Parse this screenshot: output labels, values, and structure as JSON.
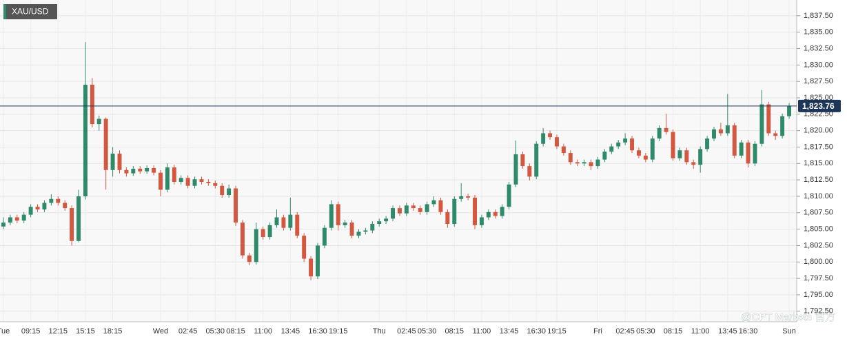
{
  "chart_data": {
    "type": "candlestick",
    "title": "XAU/USD",
    "watermark": "@CPT Markets 官方",
    "categories": [
      "Tue",
      null,
      null,
      null,
      "09:15",
      null,
      null,
      null,
      "12:15",
      null,
      null,
      null,
      "15:15",
      null,
      null,
      null,
      "18:15",
      null,
      null,
      null,
      null,
      null,
      null,
      "Wed",
      null,
      null,
      null,
      "02:45",
      null,
      null,
      null,
      "05:30",
      null,
      null,
      "08:15",
      null,
      null,
      null,
      "11:00",
      null,
      null,
      null,
      "13:45",
      null,
      null,
      null,
      "16:30",
      null,
      null,
      "19:15",
      null,
      null,
      null,
      null,
      null,
      "Thu",
      null,
      null,
      null,
      "02:45",
      null,
      null,
      "05:30",
      null,
      null,
      null,
      "08:15",
      null,
      null,
      null,
      "11:00",
      null,
      null,
      null,
      "13:45",
      null,
      null,
      null,
      "16:30",
      null,
      null,
      "19:15",
      null,
      null,
      null,
      null,
      null,
      "Fri",
      null,
      null,
      null,
      "02:45",
      null,
      null,
      "05:30",
      null,
      null,
      null,
      "08:15",
      null,
      null,
      null,
      "11:00",
      null,
      null,
      null,
      "13:45",
      null,
      null,
      "16:30",
      null,
      null,
      null,
      null,
      null,
      "Sun"
    ],
    "ohlc": [
      [
        1805.4,
        1806.8,
        1805.0,
        1806.0
      ],
      [
        1806.0,
        1807.2,
        1805.6,
        1806.8
      ],
      [
        1806.8,
        1807.2,
        1805.9,
        1806.3
      ],
      [
        1806.3,
        1807.6,
        1805.9,
        1807.2
      ],
      [
        1807.2,
        1808.8,
        1806.8,
        1808.4
      ],
      [
        1808.4,
        1808.8,
        1807.6,
        1808.0
      ],
      [
        1808.0,
        1809.4,
        1807.6,
        1809.0
      ],
      [
        1809.0,
        1810.3,
        1808.6,
        1809.6
      ],
      [
        1809.6,
        1810.0,
        1808.6,
        1809.0
      ],
      [
        1809.0,
        1809.4,
        1807.8,
        1808.2
      ],
      [
        1808.2,
        1808.6,
        1802.5,
        1803.2
      ],
      [
        1803.2,
        1811.0,
        1803.0,
        1810.0
      ],
      [
        1810.0,
        1833.5,
        1809.5,
        1827.0
      ],
      [
        1827.0,
        1828.0,
        1820.5,
        1821.0
      ],
      [
        1821.0,
        1822.3,
        1820.0,
        1821.8
      ],
      [
        1821.8,
        1822.0,
        1811.0,
        1814.0
      ],
      [
        1814.0,
        1817.5,
        1813.0,
        1816.5
      ],
      [
        1816.5,
        1817.0,
        1813.5,
        1814.0
      ],
      [
        1814.0,
        1814.4,
        1813.0,
        1813.5
      ],
      [
        1813.5,
        1814.6,
        1813.1,
        1814.2
      ],
      [
        1814.2,
        1814.6,
        1813.4,
        1813.8
      ],
      [
        1813.8,
        1814.7,
        1813.4,
        1814.3
      ],
      [
        1814.3,
        1814.7,
        1813.2,
        1813.6
      ],
      [
        1813.6,
        1814.0,
        1810.0,
        1811.0
      ],
      [
        1811.0,
        1815.0,
        1810.6,
        1814.4
      ],
      [
        1814.4,
        1814.8,
        1811.8,
        1812.2
      ],
      [
        1812.2,
        1813.2,
        1811.8,
        1812.8
      ],
      [
        1812.8,
        1813.2,
        1811.2,
        1811.6
      ],
      [
        1811.6,
        1813.0,
        1811.2,
        1812.6
      ],
      [
        1812.6,
        1813.0,
        1811.8,
        1812.2
      ],
      [
        1812.2,
        1812.6,
        1811.6,
        1812.0
      ],
      [
        1812.0,
        1812.4,
        1811.2,
        1811.6
      ],
      [
        1811.6,
        1812.0,
        1809.8,
        1810.2
      ],
      [
        1810.2,
        1811.8,
        1809.8,
        1811.2
      ],
      [
        1811.2,
        1811.6,
        1805.5,
        1806.0
      ],
      [
        1806.0,
        1806.4,
        1800.5,
        1801.0
      ],
      [
        1801.0,
        1801.4,
        1799.5,
        1800.0
      ],
      [
        1800.0,
        1806.0,
        1799.6,
        1805.0
      ],
      [
        1805.0,
        1805.4,
        1803.4,
        1803.8
      ],
      [
        1803.8,
        1806.0,
        1803.4,
        1805.6
      ],
      [
        1805.6,
        1808.0,
        1805.2,
        1806.8
      ],
      [
        1806.8,
        1807.2,
        1804.8,
        1805.2
      ],
      [
        1805.2,
        1809.8,
        1804.8,
        1807.2
      ],
      [
        1807.2,
        1807.6,
        1803.6,
        1804.0
      ],
      [
        1804.0,
        1804.4,
        1800.0,
        1800.5
      ],
      [
        1800.5,
        1800.9,
        1797.2,
        1797.8
      ],
      [
        1797.8,
        1802.9,
        1797.4,
        1802.5
      ],
      [
        1802.5,
        1805.6,
        1802.1,
        1805.2
      ],
      [
        1805.2,
        1809.4,
        1804.8,
        1808.8
      ],
      [
        1808.8,
        1809.2,
        1804.8,
        1805.6
      ],
      [
        1805.6,
        1806.4,
        1805.2,
        1806.0
      ],
      [
        1806.0,
        1806.4,
        1803.6,
        1804.0
      ],
      [
        1804.0,
        1805.0,
        1803.6,
        1804.6
      ],
      [
        1804.6,
        1805.2,
        1804.2,
        1804.8
      ],
      [
        1804.8,
        1806.2,
        1804.4,
        1805.8
      ],
      [
        1805.8,
        1806.6,
        1805.4,
        1806.2
      ],
      [
        1806.2,
        1807.0,
        1805.8,
        1806.6
      ],
      [
        1806.6,
        1808.6,
        1806.2,
        1808.2
      ],
      [
        1808.2,
        1808.6,
        1807.0,
        1807.4
      ],
      [
        1807.4,
        1809.0,
        1807.0,
        1808.6
      ],
      [
        1808.6,
        1809.0,
        1807.8,
        1808.2
      ],
      [
        1808.2,
        1808.6,
        1807.2,
        1807.6
      ],
      [
        1807.6,
        1809.2,
        1807.2,
        1808.8
      ],
      [
        1808.8,
        1810.0,
        1808.4,
        1809.4
      ],
      [
        1809.4,
        1809.8,
        1807.2,
        1807.6
      ],
      [
        1807.6,
        1808.0,
        1805.2,
        1805.8
      ],
      [
        1805.8,
        1810.0,
        1805.4,
        1809.6
      ],
      [
        1809.6,
        1812.0,
        1809.2,
        1810.0
      ],
      [
        1810.0,
        1810.4,
        1809.4,
        1809.8
      ],
      [
        1809.8,
        1810.2,
        1805.0,
        1805.6
      ],
      [
        1805.6,
        1807.2,
        1805.2,
        1806.8
      ],
      [
        1806.8,
        1808.0,
        1806.4,
        1807.6
      ],
      [
        1807.6,
        1808.0,
        1806.6,
        1807.0
      ],
      [
        1807.0,
        1808.8,
        1806.6,
        1808.4
      ],
      [
        1808.4,
        1812.2,
        1808.0,
        1811.8
      ],
      [
        1811.8,
        1818.5,
        1811.4,
        1816.4
      ],
      [
        1816.4,
        1816.8,
        1814.2,
        1814.6
      ],
      [
        1814.6,
        1815.0,
        1812.4,
        1813.0
      ],
      [
        1813.0,
        1818.4,
        1812.6,
        1818.0
      ],
      [
        1818.0,
        1820.4,
        1817.6,
        1819.6
      ],
      [
        1819.6,
        1820.0,
        1818.6,
        1819.0
      ],
      [
        1819.0,
        1819.4,
        1817.2,
        1817.6
      ],
      [
        1817.6,
        1818.0,
        1816.2,
        1816.6
      ],
      [
        1816.6,
        1817.0,
        1814.8,
        1815.2
      ],
      [
        1815.2,
        1815.6,
        1814.6,
        1815.0
      ],
      [
        1815.0,
        1815.6,
        1814.6,
        1815.2
      ],
      [
        1815.2,
        1815.6,
        1814.0,
        1814.6
      ],
      [
        1814.6,
        1816.0,
        1814.2,
        1815.6
      ],
      [
        1815.6,
        1817.2,
        1815.2,
        1816.8
      ],
      [
        1816.8,
        1818.0,
        1816.4,
        1817.6
      ],
      [
        1817.6,
        1818.6,
        1817.2,
        1818.2
      ],
      [
        1818.2,
        1819.6,
        1817.8,
        1818.8
      ],
      [
        1818.8,
        1819.2,
        1816.6,
        1817.0
      ],
      [
        1817.0,
        1817.4,
        1815.8,
        1816.2
      ],
      [
        1816.2,
        1816.6,
        1815.2,
        1815.6
      ],
      [
        1815.6,
        1819.2,
        1815.2,
        1818.8
      ],
      [
        1818.8,
        1820.8,
        1818.4,
        1820.4
      ],
      [
        1820.4,
        1822.6,
        1819.4,
        1819.8
      ],
      [
        1819.8,
        1820.2,
        1815.4,
        1815.8
      ],
      [
        1815.8,
        1817.4,
        1815.4,
        1817.0
      ],
      [
        1817.0,
        1817.4,
        1814.8,
        1815.2
      ],
      [
        1815.2,
        1815.6,
        1814.2,
        1814.8
      ],
      [
        1814.8,
        1817.6,
        1813.6,
        1817.2
      ],
      [
        1817.2,
        1819.2,
        1816.8,
        1818.8
      ],
      [
        1818.8,
        1820.6,
        1818.4,
        1820.2
      ],
      [
        1820.2,
        1821.2,
        1819.2,
        1819.6
      ],
      [
        1819.6,
        1825.6,
        1819.2,
        1820.8
      ],
      [
        1820.8,
        1821.2,
        1815.8,
        1816.2
      ],
      [
        1816.2,
        1818.6,
        1815.8,
        1818.2
      ],
      [
        1818.2,
        1818.6,
        1814.4,
        1815.0
      ],
      [
        1815.0,
        1818.4,
        1814.6,
        1818.0
      ],
      [
        1818.0,
        1826.2,
        1817.6,
        1824.0
      ],
      [
        1824.0,
        1824.4,
        1819.2,
        1819.6
      ],
      [
        1819.6,
        1820.0,
        1818.6,
        1819.2
      ],
      [
        1819.2,
        1822.6,
        1818.8,
        1822.2
      ],
      [
        1822.2,
        1824.2,
        1821.8,
        1823.76
      ]
    ],
    "up_color": "#2f8a6a",
    "down_color": "#d4573f",
    "last_price": {
      "value": 1823.76,
      "label": "1,823.76"
    },
    "last_price_color": "#1d3557",
    "ylim": [
      1790.9,
      1839.9
    ],
    "yticks": [
      {
        "value": 1792.5,
        "label": "1,792.50"
      },
      {
        "value": 1795,
        "label": "1,795.00"
      },
      {
        "value": 1797.5,
        "label": "1,797.50"
      },
      {
        "value": 1800,
        "label": "1,800.00"
      },
      {
        "value": 1802.5,
        "label": "1,802.50"
      },
      {
        "value": 1805,
        "label": "1,805.00"
      },
      {
        "value": 1807.5,
        "label": "1,807.50"
      },
      {
        "value": 1810,
        "label": "1,810.00"
      },
      {
        "value": 1812.5,
        "label": "1,812.50"
      },
      {
        "value": 1815,
        "label": "1,815.00"
      },
      {
        "value": 1817.5,
        "label": "1,817.50"
      },
      {
        "value": 1820,
        "label": "1,820.00"
      },
      {
        "value": 1822.5,
        "label": "1,822.50"
      },
      {
        "value": 1825,
        "label": "1,825.00"
      },
      {
        "value": 1827.5,
        "label": "1,827.50"
      },
      {
        "value": 1830,
        "label": "1,830.00"
      },
      {
        "value": 1832.5,
        "label": "1,832.50"
      },
      {
        "value": 1835,
        "label": "1,835.00"
      },
      {
        "value": 1837.5,
        "label": "1,837.50"
      }
    ],
    "grid": true
  }
}
